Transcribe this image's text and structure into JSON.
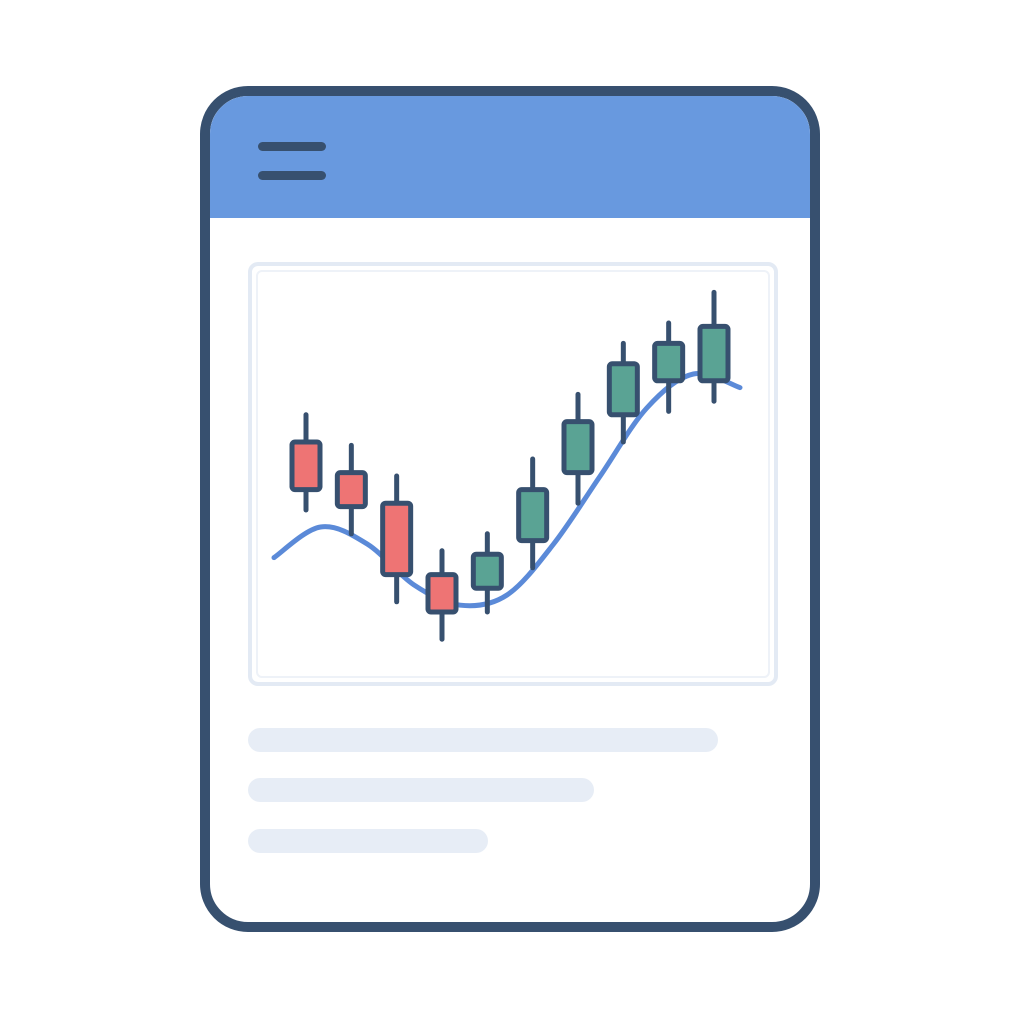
{
  "app": {
    "colors": {
      "frame": "#37506f",
      "header": "#6899df",
      "up_candle": "#5aa394",
      "down_candle": "#ee7474",
      "trend_line": "#5b8ad8",
      "placeholder": "#e7edf6"
    },
    "header": {
      "menu_icon": "hamburger-menu-icon"
    },
    "content": {
      "placeholder_lines": 3
    }
  },
  "chart_data": {
    "type": "candlestick",
    "title": "",
    "xlabel": "",
    "ylabel": "",
    "grid": false,
    "legend": "none",
    "ylim": [
      0,
      100
    ],
    "candles": [
      {
        "open": 60,
        "close": 46,
        "high": 68,
        "low": 40
      },
      {
        "open": 51,
        "close": 41,
        "high": 59,
        "low": 33
      },
      {
        "open": 42,
        "close": 21,
        "high": 50,
        "low": 13
      },
      {
        "open": 21,
        "close": 10,
        "high": 28,
        "low": 2
      },
      {
        "open": 17,
        "close": 27,
        "high": 33,
        "low": 10
      },
      {
        "open": 31,
        "close": 46,
        "high": 55,
        "low": 23
      },
      {
        "open": 51,
        "close": 66,
        "high": 74,
        "low": 42
      },
      {
        "open": 68,
        "close": 83,
        "high": 89,
        "low": 60
      },
      {
        "open": 78,
        "close": 89,
        "high": 95,
        "low": 69
      },
      {
        "open": 78,
        "close": 94,
        "high": 104,
        "low": 72
      }
    ],
    "series": [
      {
        "type": "line",
        "x": [
          0,
          1,
          2,
          3,
          4,
          5,
          6,
          7,
          8,
          9,
          10
        ],
        "values": [
          26,
          35,
          30,
          18,
          12,
          15,
          30,
          50,
          70,
          80,
          76
        ]
      }
    ]
  }
}
